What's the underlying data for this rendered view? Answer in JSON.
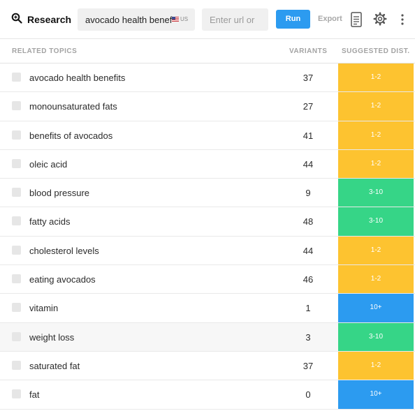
{
  "toolbar": {
    "brand_label": "Research",
    "query_value": "avocado health benefits",
    "country_label": "US",
    "url_placeholder": "Enter url or",
    "run_label": "Run",
    "export_label": "Export",
    "icons": [
      "zoom-icon",
      "document-icon",
      "gear-icon",
      "more-vertical-icon"
    ]
  },
  "table": {
    "columns": [
      "RELATED TOPICS",
      "VARIANTS",
      "SUGGESTED DIST."
    ],
    "rows": [
      {
        "topic": "avocado health benefits",
        "variants": "37",
        "dist": "1-2"
      },
      {
        "topic": "monounsaturated fats",
        "variants": "27",
        "dist": "1-2"
      },
      {
        "topic": "benefits of avocados",
        "variants": "41",
        "dist": "1-2"
      },
      {
        "topic": "oleic acid",
        "variants": "44",
        "dist": "1-2"
      },
      {
        "topic": "blood pressure",
        "variants": "9",
        "dist": "3-10"
      },
      {
        "topic": "fatty acids",
        "variants": "48",
        "dist": "3-10"
      },
      {
        "topic": "cholesterol levels",
        "variants": "44",
        "dist": "1-2"
      },
      {
        "topic": "eating avocados",
        "variants": "46",
        "dist": "1-2"
      },
      {
        "topic": "vitamin",
        "variants": "1",
        "dist": "10+"
      },
      {
        "topic": "weight loss",
        "variants": "3",
        "dist": "3-10"
      },
      {
        "topic": "saturated fat",
        "variants": "37",
        "dist": "1-2"
      },
      {
        "topic": "fat",
        "variants": "0",
        "dist": "10+"
      }
    ]
  },
  "colors": {
    "accent": "#2c9bf0",
    "dist_1_2": "#fdc330",
    "dist_3_10": "#36d587",
    "dist_10_plus": "#2c9bf0"
  }
}
